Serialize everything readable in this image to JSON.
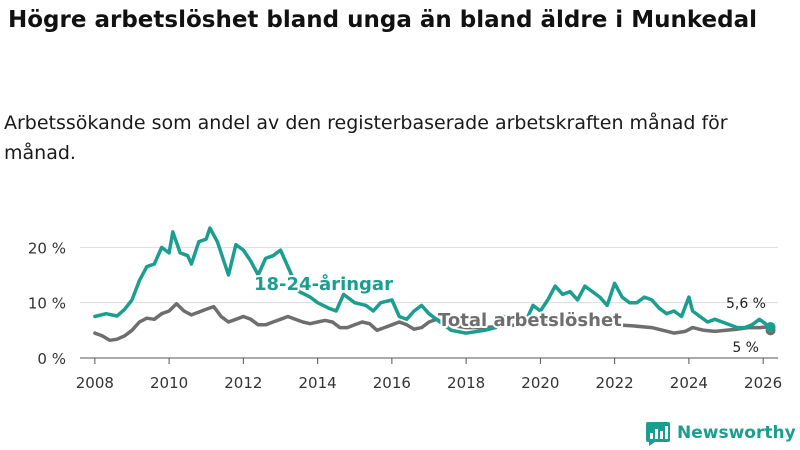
{
  "title": "Högre arbetslöshet bland unga än bland äldre i Munkedal",
  "subtitle": "Arbetssökande som andel av den registerbaserade arbetskraften månad för månad.",
  "colors": {
    "youth": "#1b9e8f",
    "total": "#6e6e6e",
    "grid": "#dddddd",
    "brand": "#1b9e8f"
  },
  "brand": {
    "name": "Newsworthy",
    "icon": "bar-chart-logo-icon"
  },
  "chart_data": {
    "type": "line",
    "xlim": [
      2007.6,
      2026.4
    ],
    "ylim": [
      0,
      23.5
    ],
    "x_ticks": [
      2008,
      2010,
      2012,
      2014,
      2016,
      2018,
      2020,
      2022,
      2024,
      2026
    ],
    "x_tick_labels": [
      "2008",
      "2010",
      "2012",
      "2014",
      "2016",
      "2018",
      "2020",
      "2022",
      "2024",
      "2026"
    ],
    "y_ticks": [
      0,
      10,
      20
    ],
    "y_tick_labels": [
      "0 %",
      "10 %",
      "20 %"
    ],
    "grid": true,
    "series": [
      {
        "name": "18-24-åringar",
        "label": "18-24-åringar",
        "x": [
          2008.0,
          2008.3,
          2008.6,
          2008.8,
          2009.0,
          2009.2,
          2009.4,
          2009.6,
          2009.8,
          2010.0,
          2010.1,
          2010.3,
          2010.5,
          2010.6,
          2010.8,
          2011.0,
          2011.1,
          2011.3,
          2011.5,
          2011.6,
          2011.8,
          2012.0,
          2012.2,
          2012.4,
          2012.6,
          2012.8,
          2013.0,
          2013.3,
          2013.5,
          2013.8,
          2014.0,
          2014.3,
          2014.5,
          2014.7,
          2015.0,
          2015.3,
          2015.5,
          2015.7,
          2016.0,
          2016.2,
          2016.4,
          2016.6,
          2016.8,
          2017.0,
          2017.2,
          2017.4,
          2017.6,
          2018.0,
          2018.5,
          2018.8,
          2019.0,
          2019.3,
          2019.6,
          2019.8,
          2020.0,
          2020.2,
          2020.4,
          2020.6,
          2020.8,
          2021.0,
          2021.2,
          2021.4,
          2021.6,
          2021.8,
          2022.0,
          2022.2,
          2022.4,
          2022.6,
          2022.8,
          2023.0,
          2023.2,
          2023.4,
          2023.6,
          2023.8,
          2024.0,
          2024.1,
          2024.3,
          2024.5,
          2024.7,
          2024.9,
          2025.1,
          2025.3,
          2025.5,
          2025.7,
          2025.9,
          2026.1,
          2026.2
        ],
        "values": [
          7.5,
          8.0,
          7.6,
          8.8,
          10.5,
          14.0,
          16.5,
          17.0,
          20.0,
          19.0,
          22.8,
          19.0,
          18.5,
          17.0,
          21.0,
          21.5,
          23.5,
          21.0,
          17.0,
          15.0,
          20.5,
          19.5,
          17.5,
          15.0,
          18.0,
          18.5,
          19.5,
          15.0,
          12.0,
          11.0,
          10.0,
          9.0,
          8.5,
          11.5,
          10.0,
          9.5,
          8.5,
          10.0,
          10.5,
          7.5,
          7.0,
          8.5,
          9.5,
          8.0,
          7.0,
          6.0,
          5.0,
          4.5,
          5.0,
          5.5,
          7.5,
          7.0,
          6.5,
          9.5,
          8.5,
          10.5,
          13.0,
          11.5,
          12.0,
          10.5,
          13.0,
          12.0,
          11.0,
          9.5,
          13.5,
          11.0,
          10.0,
          10.0,
          11.0,
          10.5,
          9.0,
          8.0,
          8.5,
          7.5,
          11.0,
          8.5,
          7.5,
          6.5,
          7.0,
          6.5,
          6.0,
          5.5,
          5.5,
          6.0,
          7.0,
          6.0,
          5.6
        ]
      },
      {
        "name": "Total arbetslöshet",
        "label": "Total arbetslöshet",
        "x": [
          2008.0,
          2008.2,
          2008.4,
          2008.6,
          2008.8,
          2009.0,
          2009.2,
          2009.4,
          2009.6,
          2009.8,
          2010.0,
          2010.2,
          2010.4,
          2010.6,
          2010.8,
          2011.0,
          2011.2,
          2011.4,
          2011.6,
          2011.8,
          2012.0,
          2012.2,
          2012.4,
          2012.6,
          2012.8,
          2013.0,
          2013.2,
          2013.4,
          2013.6,
          2013.8,
          2014.0,
          2014.2,
          2014.4,
          2014.6,
          2014.8,
          2015.0,
          2015.2,
          2015.4,
          2015.6,
          2015.8,
          2016.0,
          2016.2,
          2016.4,
          2016.6,
          2016.8,
          2017.0,
          2017.2,
          2017.5,
          2018.0,
          2018.5,
          2019.0,
          2019.5,
          2020.0,
          2020.5,
          2021.0,
          2021.5,
          2022.0,
          2022.5,
          2023.0,
          2023.3,
          2023.6,
          2023.9,
          2024.1,
          2024.4,
          2024.7,
          2025.0,
          2025.3,
          2025.6,
          2025.9,
          2026.1,
          2026.2
        ],
        "values": [
          4.5,
          4.0,
          3.2,
          3.4,
          4.0,
          5.0,
          6.5,
          7.2,
          7.0,
          8.0,
          8.5,
          9.8,
          8.5,
          7.8,
          8.3,
          8.8,
          9.3,
          7.5,
          6.5,
          7.0,
          7.5,
          7.0,
          6.0,
          6.0,
          6.5,
          7.0,
          7.5,
          7.0,
          6.5,
          6.2,
          6.5,
          6.8,
          6.5,
          5.5,
          5.5,
          6.0,
          6.5,
          6.2,
          5.0,
          5.5,
          6.0,
          6.5,
          6.0,
          5.2,
          5.5,
          6.5,
          7.0,
          6.0,
          5.5,
          5.5,
          5.8,
          6.0,
          7.0,
          7.0,
          6.5,
          6.0,
          6.0,
          5.8,
          5.5,
          5.0,
          4.5,
          4.8,
          5.5,
          5.0,
          4.8,
          5.0,
          5.2,
          5.5,
          5.5,
          5.6,
          5.0
        ]
      }
    ],
    "end_labels": [
      "5,6 %",
      "5 %"
    ]
  }
}
